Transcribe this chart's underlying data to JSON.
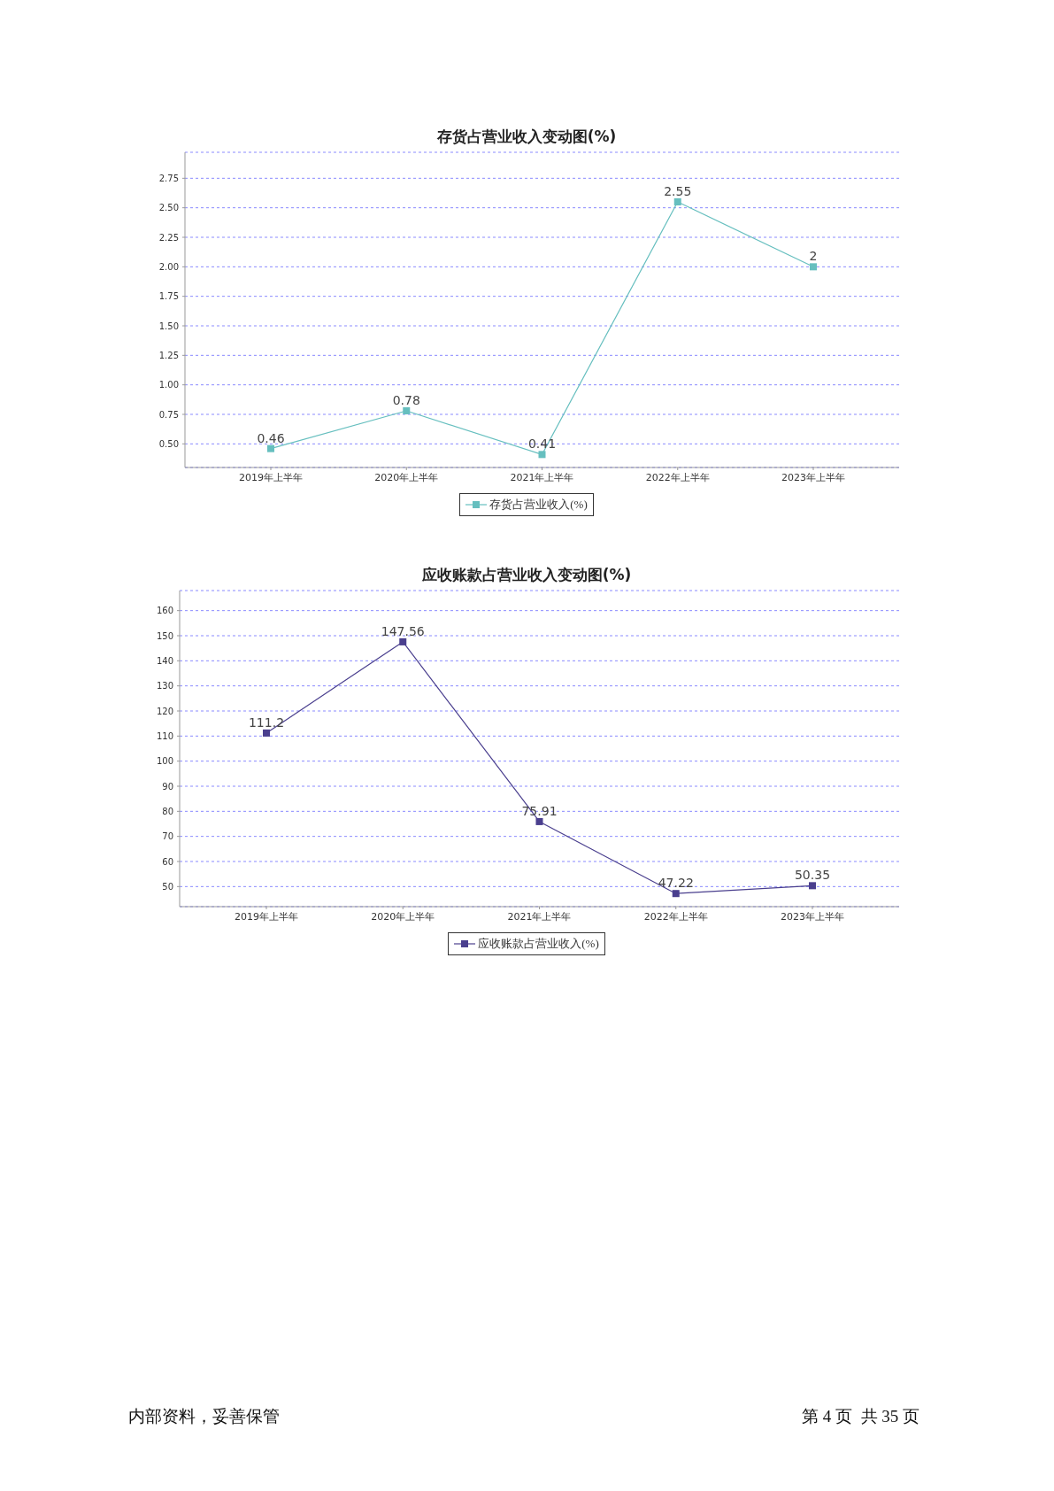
{
  "chart_data": [
    {
      "type": "line",
      "title": "存货占营业收入变动图(%)",
      "categories": [
        "2019年上半年",
        "2020年上半年",
        "2021年上半年",
        "2022年上半年",
        "2023年上半年"
      ],
      "series": [
        {
          "name": "存货占营业收入(%)",
          "color": "#66bfbf",
          "values": [
            0.46,
            0.78,
            0.41,
            2.55,
            2
          ]
        }
      ],
      "ylim": [
        0.3,
        2.97
      ],
      "yticks": [
        {
          "value": 0.5,
          "label": "0.50"
        },
        {
          "value": 0.75,
          "label": "0.75"
        },
        {
          "value": 1,
          "label": "1.00"
        },
        {
          "value": 1.25,
          "label": "1.25"
        },
        {
          "value": 1.5,
          "label": "1.50"
        },
        {
          "value": 1.75,
          "label": "1.75"
        },
        {
          "value": 2,
          "label": "2.00"
        },
        {
          "value": 2.25,
          "label": "2.25"
        },
        {
          "value": 2.5,
          "label": "2.50"
        },
        {
          "value": 2.75,
          "label": "2.75"
        }
      ],
      "grid": "y",
      "legend": "bottom",
      "marker": "square",
      "line_style": "solid",
      "data_labels": true
    },
    {
      "type": "line",
      "title": "应收账款占营业收入变动图(%)",
      "categories": [
        "2019年上半年",
        "2020年上半年",
        "2021年上半年",
        "2022年上半年",
        "2023年上半年"
      ],
      "series": [
        {
          "name": "应收账款占营业收入(%)",
          "color": "#4a3f8e",
          "values": [
            111.2,
            147.56,
            75.91,
            47.22,
            50.35
          ]
        }
      ],
      "ylim": [
        42,
        168
      ],
      "yticks": [
        50,
        60,
        70,
        80,
        90,
        100,
        110,
        120,
        130,
        140,
        150,
        160
      ],
      "grid": "y",
      "legend": "bottom",
      "marker": "square",
      "line_style": "solid",
      "data_labels": true,
      "annotations": [
        "内部资料，妥善保管",
        "第 4 页  共 35 页"
      ]
    }
  ]
}
